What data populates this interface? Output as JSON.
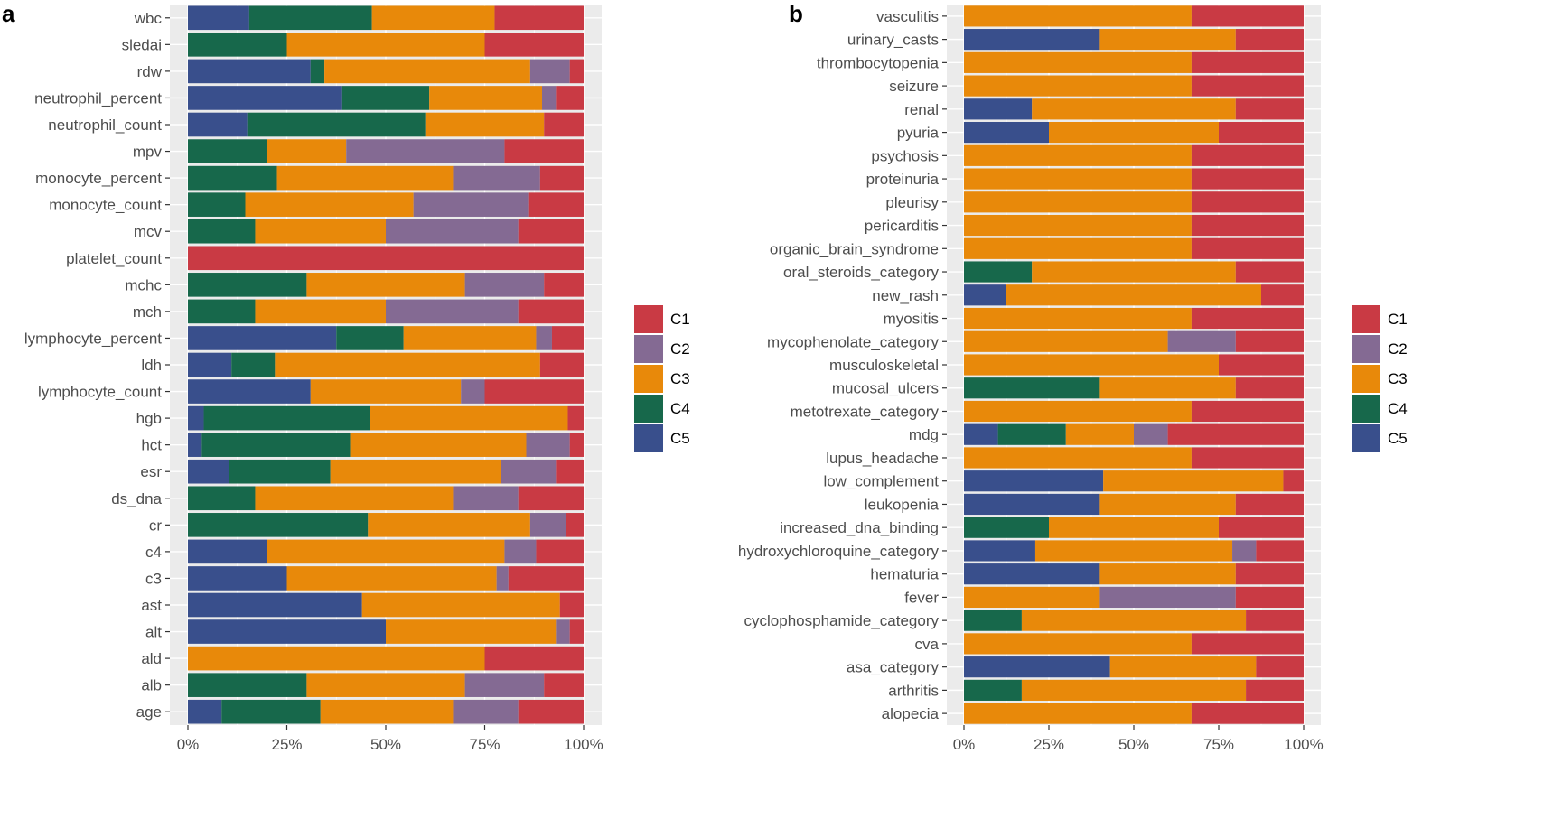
{
  "colors": {
    "C1": "#c93a44",
    "C2": "#846a93",
    "C3": "#e8890a",
    "C4": "#17684b",
    "C5": "#394f8c",
    "panel_bg": "#ebebeb",
    "grid": "#ffffff"
  },
  "chart_data": [
    {
      "type": "bar",
      "orientation": "horizontal",
      "stacked": true,
      "panel": "a",
      "x_tick_labels": [
        "0%",
        "25%",
        "50%",
        "75%",
        "100%"
      ],
      "x_ticks": [
        0,
        25,
        50,
        75,
        100
      ],
      "xlim": [
        0,
        100
      ],
      "stack_order": [
        "C5",
        "C4",
        "C3",
        "C2",
        "C1"
      ],
      "legend": [
        "C1",
        "C2",
        "C3",
        "C4",
        "C5"
      ],
      "legend_position": "right",
      "rows": [
        {
          "label": "wbc",
          "C5": 15.5,
          "C4": 31,
          "C3": 31,
          "C2": 0,
          "C1": 22.5
        },
        {
          "label": "sledai",
          "C5": 0,
          "C4": 25,
          "C3": 50,
          "C2": 0,
          "C1": 25
        },
        {
          "label": "rdw",
          "C5": 31,
          "C4": 3.5,
          "C3": 52,
          "C2": 10,
          "C1": 3.5
        },
        {
          "label": "neutrophil_percent",
          "C5": 39,
          "C4": 22,
          "C3": 28.5,
          "C2": 3.5,
          "C1": 7
        },
        {
          "label": "neutrophil_count",
          "C5": 15,
          "C4": 45,
          "C3": 30,
          "C2": 0,
          "C1": 10
        },
        {
          "label": "mpv",
          "C5": 0,
          "C4": 20,
          "C3": 20,
          "C2": 40,
          "C1": 20
        },
        {
          "label": "monocyte_percent",
          "C5": 0,
          "C4": 22.5,
          "C3": 44.5,
          "C2": 22,
          "C1": 11
        },
        {
          "label": "monocyte_count",
          "C5": 0,
          "C4": 14.5,
          "C3": 42.5,
          "C2": 29,
          "C1": 14
        },
        {
          "label": "mcv",
          "C5": 0,
          "C4": 17,
          "C3": 33,
          "C2": 33.5,
          "C1": 16.5
        },
        {
          "label": "platelet_count",
          "C5": 0,
          "C4": 0,
          "C3": 0,
          "C2": 0,
          "C1": 100
        },
        {
          "label": "mchc",
          "C5": 0,
          "C4": 30,
          "C3": 40,
          "C2": 20,
          "C1": 10
        },
        {
          "label": "mch",
          "C5": 0,
          "C4": 17,
          "C3": 33,
          "C2": 33.5,
          "C1": 16.5
        },
        {
          "label": "lymphocyte_percent",
          "C5": 37.5,
          "C4": 17,
          "C3": 33.5,
          "C2": 4,
          "C1": 8
        },
        {
          "label": "ldh",
          "C5": 11,
          "C4": 11,
          "C3": 67,
          "C2": 0,
          "C1": 11
        },
        {
          "label": "lymphocyte_count",
          "C5": 31,
          "C4": 0,
          "C3": 38,
          "C2": 6,
          "C1": 25
        },
        {
          "label": "hgb",
          "C5": 4,
          "C4": 42,
          "C3": 50,
          "C2": 0,
          "C1": 4
        },
        {
          "label": "hct",
          "C5": 3.5,
          "C4": 37.5,
          "C3": 44.5,
          "C2": 11,
          "C1": 3.5
        },
        {
          "label": "esr",
          "C5": 10.5,
          "C4": 25.5,
          "C3": 43,
          "C2": 14,
          "C1": 7
        },
        {
          "label": "ds_dna",
          "C5": 0,
          "C4": 17,
          "C3": 50,
          "C2": 16.5,
          "C1": 16.5
        },
        {
          "label": "cr",
          "C5": 0,
          "C4": 45.5,
          "C3": 41,
          "C2": 9,
          "C1": 4.5
        },
        {
          "label": "c4",
          "C5": 20,
          "C4": 0,
          "C3": 60,
          "C2": 8,
          "C1": 12
        },
        {
          "label": "c3",
          "C5": 25,
          "C4": 0,
          "C3": 53,
          "C2": 3,
          "C1": 19
        },
        {
          "label": "ast",
          "C5": 44,
          "C4": 0,
          "C3": 50,
          "C2": 0,
          "C1": 6
        },
        {
          "label": "alt",
          "C5": 50,
          "C4": 0,
          "C3": 43,
          "C2": 3.5,
          "C1": 3.5
        },
        {
          "label": "ald",
          "C5": 0,
          "C4": 0,
          "C3": 75,
          "C2": 0,
          "C1": 25
        },
        {
          "label": "alb",
          "C5": 0,
          "C4": 30,
          "C3": 40,
          "C2": 20,
          "C1": 10
        },
        {
          "label": "age",
          "C5": 8.5,
          "C4": 25,
          "C3": 33.5,
          "C2": 16.5,
          "C1": 16.5
        }
      ]
    },
    {
      "type": "bar",
      "orientation": "horizontal",
      "stacked": true,
      "panel": "b",
      "x_tick_labels": [
        "0%",
        "25%",
        "50%",
        "75%",
        "100%"
      ],
      "x_ticks": [
        0,
        25,
        50,
        75,
        100
      ],
      "xlim": [
        0,
        100
      ],
      "stack_order": [
        "C5",
        "C4",
        "C3",
        "C2",
        "C1"
      ],
      "legend": [
        "C1",
        "C2",
        "C3",
        "C4",
        "C5"
      ],
      "legend_position": "right",
      "rows": [
        {
          "label": "vasculitis",
          "C5": 0,
          "C4": 0,
          "C3": 67,
          "C2": 0,
          "C1": 33
        },
        {
          "label": "urinary_casts",
          "C5": 40,
          "C4": 0,
          "C3": 40,
          "C2": 0,
          "C1": 20
        },
        {
          "label": "thrombocytopenia",
          "C5": 0,
          "C4": 0,
          "C3": 67,
          "C2": 0,
          "C1": 33
        },
        {
          "label": "seizure",
          "C5": 0,
          "C4": 0,
          "C3": 67,
          "C2": 0,
          "C1": 33
        },
        {
          "label": "renal",
          "C5": 20,
          "C4": 0,
          "C3": 60,
          "C2": 0,
          "C1": 20
        },
        {
          "label": "pyuria",
          "C5": 25,
          "C4": 0,
          "C3": 50,
          "C2": 0,
          "C1": 25
        },
        {
          "label": "psychosis",
          "C5": 0,
          "C4": 0,
          "C3": 67,
          "C2": 0,
          "C1": 33
        },
        {
          "label": "proteinuria",
          "C5": 0,
          "C4": 0,
          "C3": 67,
          "C2": 0,
          "C1": 33
        },
        {
          "label": "pleurisy",
          "C5": 0,
          "C4": 0,
          "C3": 67,
          "C2": 0,
          "C1": 33
        },
        {
          "label": "pericarditis",
          "C5": 0,
          "C4": 0,
          "C3": 67,
          "C2": 0,
          "C1": 33
        },
        {
          "label": "organic_brain_syndrome",
          "C5": 0,
          "C4": 0,
          "C3": 67,
          "C2": 0,
          "C1": 33
        },
        {
          "label": "oral_steroids_category",
          "C5": 0,
          "C4": 20,
          "C3": 60,
          "C2": 0,
          "C1": 20
        },
        {
          "label": "new_rash",
          "C5": 12.5,
          "C4": 0,
          "C3": 75,
          "C2": 0,
          "C1": 12.5
        },
        {
          "label": "myositis",
          "C5": 0,
          "C4": 0,
          "C3": 67,
          "C2": 0,
          "C1": 33
        },
        {
          "label": "mycophenolate_category",
          "C5": 0,
          "C4": 0,
          "C3": 60,
          "C2": 20,
          "C1": 20
        },
        {
          "label": "musculoskeletal",
          "C5": 0,
          "C4": 0,
          "C3": 75,
          "C2": 0,
          "C1": 25
        },
        {
          "label": "mucosal_ulcers",
          "C5": 0,
          "C4": 40,
          "C3": 40,
          "C2": 0,
          "C1": 20
        },
        {
          "label": "metotrexate_category",
          "C5": 0,
          "C4": 0,
          "C3": 67,
          "C2": 0,
          "C1": 33
        },
        {
          "label": "mdg",
          "C5": 10,
          "C4": 20,
          "C3": 20,
          "C2": 10,
          "C1": 40
        },
        {
          "label": "lupus_headache",
          "C5": 0,
          "C4": 0,
          "C3": 67,
          "C2": 0,
          "C1": 33
        },
        {
          "label": "low_complement",
          "C5": 41,
          "C4": 0,
          "C3": 53,
          "C2": 0,
          "C1": 6
        },
        {
          "label": "leukopenia",
          "C5": 40,
          "C4": 0,
          "C3": 40,
          "C2": 0,
          "C1": 20
        },
        {
          "label": "increased_dna_binding",
          "C5": 0,
          "C4": 25,
          "C3": 50,
          "C2": 0,
          "C1": 25
        },
        {
          "label": "hydroxychloroquine_category",
          "C5": 21,
          "C4": 0,
          "C3": 58,
          "C2": 7,
          "C1": 14
        },
        {
          "label": "hematuria",
          "C5": 40,
          "C4": 0,
          "C3": 40,
          "C2": 0,
          "C1": 20
        },
        {
          "label": "fever",
          "C5": 0,
          "C4": 0,
          "C3": 40,
          "C2": 40,
          "C1": 20
        },
        {
          "label": "cyclophosphamide_category",
          "C5": 0,
          "C4": 17,
          "C3": 66,
          "C2": 0,
          "C1": 17
        },
        {
          "label": "cva",
          "C5": 0,
          "C4": 0,
          "C3": 67,
          "C2": 0,
          "C1": 33
        },
        {
          "label": "asa_category",
          "C5": 43,
          "C4": 0,
          "C3": 43,
          "C2": 0,
          "C1": 14
        },
        {
          "label": "arthritis",
          "C5": 0,
          "C4": 17,
          "C3": 66,
          "C2": 0,
          "C1": 17
        },
        {
          "label": "alopecia",
          "C5": 0,
          "C4": 0,
          "C3": 67,
          "C2": 0,
          "C1": 33
        }
      ]
    }
  ],
  "panels": {
    "a": {
      "letter": "a"
    },
    "b": {
      "letter": "b"
    }
  }
}
